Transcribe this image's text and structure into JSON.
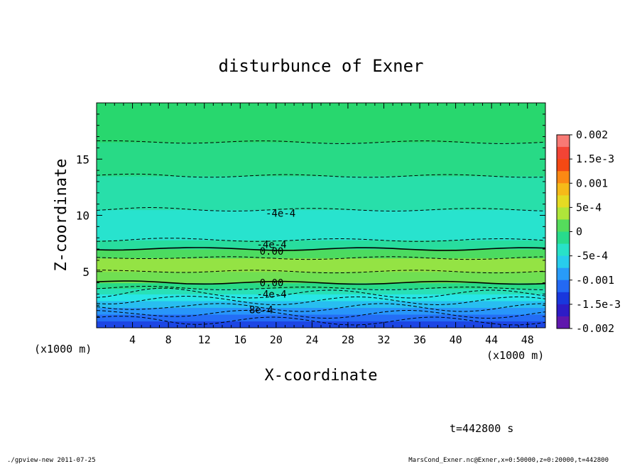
{
  "chart_data": {
    "type": "heatmap",
    "title": "disturbunce of Exner",
    "xlabel": "X-coordinate",
    "ylabel": "Z-coordinate",
    "x_unit_left": "(x1000 m)",
    "x_unit_right": "(x1000 m)",
    "xlim": [
      0,
      50
    ],
    "ylim": [
      0,
      20
    ],
    "x_ticks": [
      4,
      8,
      12,
      16,
      20,
      24,
      28,
      32,
      36,
      40,
      44,
      48
    ],
    "y_ticks": [
      5,
      10,
      15
    ],
    "colorbar": {
      "ticks": [
        "0.002",
        "1.5e-3",
        "0.001",
        "5e-4",
        "0",
        "-5e-4",
        "-0.001",
        "-1.5e-3",
        "-0.002"
      ],
      "range": [
        -0.002,
        0.002
      ]
    },
    "field_layers": [
      {
        "z_range": [
          0,
          0.6
        ],
        "value": -0.0013
      },
      {
        "z_range": [
          0.6,
          1.2
        ],
        "value": -0.0011
      },
      {
        "z_range": [
          1.2,
          1.8
        ],
        "value": -0.0009
      },
      {
        "z_range": [
          1.8,
          2.4
        ],
        "value": -0.0007
      },
      {
        "z_range": [
          2.4,
          3.0
        ],
        "value": -0.0005
      },
      {
        "z_range": [
          3.0,
          3.5
        ],
        "value": -0.0003
      },
      {
        "z_range": [
          3.5,
          4.0
        ],
        "value": -0.0001
      },
      {
        "z_range": [
          4.0,
          5.0
        ],
        "value": 0.0002
      },
      {
        "z_range": [
          5.0,
          6.2
        ],
        "value": 0.0003
      },
      {
        "z_range": [
          6.2,
          7.0
        ],
        "value": 0.0001
      },
      {
        "z_range": [
          7.0,
          7.8
        ],
        "value": -0.0002
      },
      {
        "z_range": [
          7.8,
          10.5
        ],
        "value": -0.0004
      },
      {
        "z_range": [
          10.5,
          13.5
        ],
        "value": -0.00025
      },
      {
        "z_range": [
          13.5,
          16.5
        ],
        "value": -0.0001
      },
      {
        "z_range": [
          16.5,
          20.0
        ],
        "value": 0.0
      }
    ],
    "contour_labels": [
      {
        "text": "-4e-4",
        "x": 20.5,
        "z": 10.2
      },
      {
        "text": "-4e-4",
        "x": 19.5,
        "z": 7.4
      },
      {
        "text": "0.00",
        "x": 19.5,
        "z": 6.8
      },
      {
        "text": "0.00",
        "x": 19.5,
        "z": 4.0
      },
      {
        "text": "-4e-4",
        "x": 19.5,
        "z": 3.0
      },
      {
        "text": "-8e-4",
        "x": 18.0,
        "z": 1.6
      }
    ],
    "grid": false,
    "legend": "right"
  },
  "annotation_time": "t=442800 s",
  "footer_left": "./gpview-new   2011-07-25",
  "footer_right": "MarsCond_Exner.nc@Exner,x=0:50000,z=0:20000,t=442800"
}
